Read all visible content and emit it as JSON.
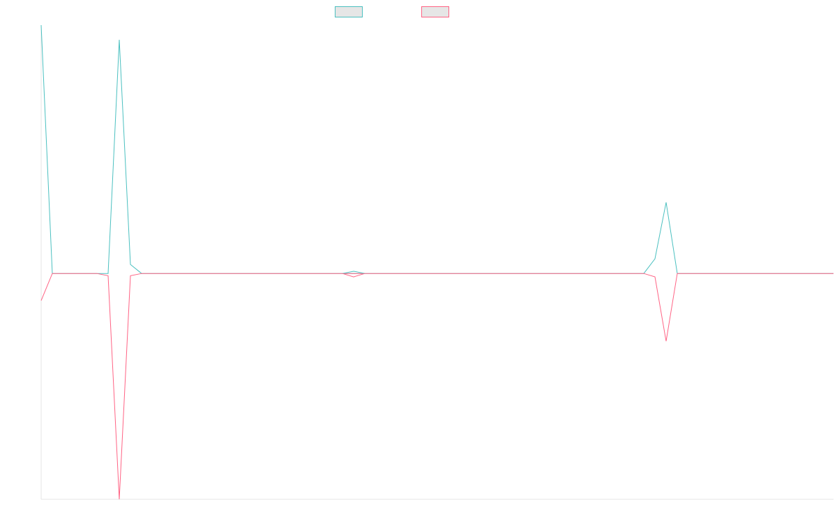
{
  "chart_data": {
    "type": "line",
    "title": "",
    "xlabel": "",
    "ylabel": "",
    "grid": false,
    "legend_placement": "top",
    "x_count": 72,
    "ylim": [
      -20,
      22
    ],
    "series": [
      {
        "color": "#4bc0c0",
        "swatch_fill": "#e6e6e6",
        "values": [
          22,
          0,
          0,
          0,
          0,
          0,
          0,
          20.7,
          0.8,
          0,
          0,
          0,
          0,
          0,
          0,
          0,
          0,
          0,
          0,
          0,
          0,
          0,
          0,
          0,
          0,
          0,
          0,
          0,
          0,
          0,
          0,
          0,
          0,
          0,
          0,
          0,
          0,
          0,
          0,
          0,
          0,
          0,
          0,
          0,
          0,
          0,
          0,
          0,
          0,
          0,
          0,
          0,
          0,
          0,
          0,
          1.3,
          6.3,
          0,
          0,
          0,
          0,
          0,
          0,
          0,
          0,
          0,
          0,
          0,
          0,
          0,
          0,
          0
        ]
      },
      {
        "color": "#ff6384",
        "swatch_fill": "#e6e6e6",
        "values": [
          -2.4,
          0,
          0,
          0,
          0,
          0,
          -0.2,
          -20,
          -0.2,
          0,
          0,
          0,
          0,
          0,
          0,
          0,
          0,
          0,
          0,
          0,
          0,
          0,
          0,
          0,
          0,
          0,
          0,
          0,
          0,
          0,
          0,
          0,
          0,
          0,
          0,
          0,
          0,
          0,
          0,
          0,
          0,
          0,
          0,
          0,
          0,
          0,
          0,
          0,
          0,
          0,
          0,
          0,
          0,
          0,
          0,
          -0.3,
          -6,
          0,
          0,
          0,
          0,
          0,
          0,
          0,
          0,
          0,
          0,
          0,
          0,
          0,
          0,
          0
        ]
      }
    ],
    "blips": [
      {
        "x": 28,
        "series0": 0.2,
        "series1": -0.3
      }
    ]
  }
}
